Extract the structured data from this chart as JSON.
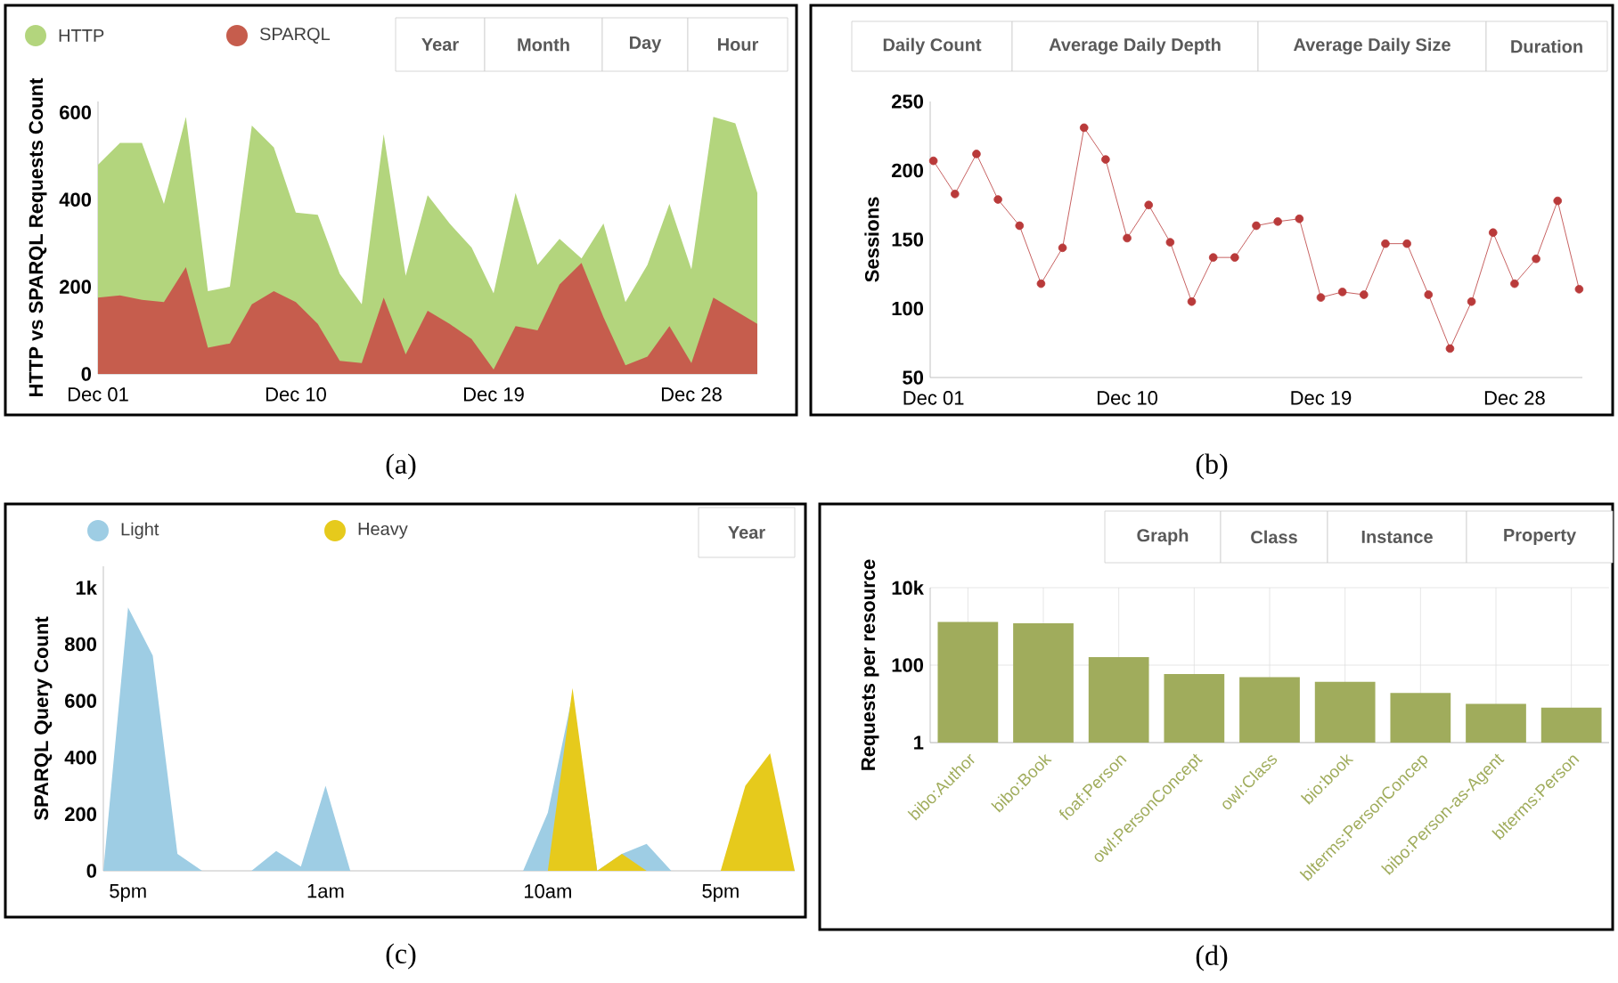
{
  "chart_data": [
    {
      "type": "area",
      "subtitle": "(a)",
      "ylabel": "HTTP vs SPARQL Requests Count",
      "categories": [
        "Dec 01",
        null,
        null,
        null,
        null,
        null,
        null,
        null,
        null,
        "Dec 10",
        null,
        null,
        null,
        null,
        null,
        null,
        null,
        null,
        "Dec 19",
        null,
        null,
        null,
        null,
        null,
        null,
        null,
        null,
        "Dec 28",
        null,
        null,
        null
      ],
      "series": [
        {
          "name": "HTTP",
          "color": "#b3d57d",
          "values": [
            480,
            530,
            530,
            390,
            590,
            190,
            200,
            570,
            520,
            370,
            365,
            230,
            160,
            550,
            225,
            410,
            345,
            290,
            185,
            415,
            250,
            310,
            265,
            345,
            165,
            250,
            390,
            240,
            590,
            575,
            415
          ]
        },
        {
          "name": "SPARQL",
          "color": "#c65d4d",
          "values": [
            175,
            180,
            170,
            165,
            245,
            60,
            70,
            160,
            190,
            165,
            115,
            30,
            25,
            175,
            45,
            145,
            115,
            80,
            10,
            110,
            100,
            205,
            255,
            130,
            20,
            40,
            110,
            25,
            175,
            145,
            115
          ]
        }
      ],
      "ylim": [
        0,
        625
      ],
      "yticks": [
        0,
        200,
        400,
        600
      ],
      "legend": "top left",
      "annotations": [
        "Year",
        "Month",
        "Day",
        "Hour"
      ]
    },
    {
      "type": "line",
      "subtitle": "(b)",
      "ylabel": "Sessions",
      "marker": "circle",
      "categories": [
        "Dec 01",
        null,
        null,
        null,
        null,
        null,
        null,
        null,
        null,
        "Dec 10",
        null,
        null,
        null,
        null,
        null,
        null,
        null,
        null,
        "Dec 19",
        null,
        null,
        null,
        null,
        null,
        null,
        null,
        null,
        "Dec 28",
        null,
        null,
        null
      ],
      "series": [
        {
          "color": "#b93a3a",
          "values": [
            207,
            183,
            212,
            179,
            160,
            118,
            144,
            231,
            208,
            151,
            175,
            148,
            105,
            137,
            137,
            160,
            163,
            165,
            108,
            112,
            110,
            147,
            147,
            110,
            71,
            105,
            155,
            118,
            136,
            178,
            114
          ]
        }
      ],
      "ylim": [
        50,
        250
      ],
      "yticks": [
        50,
        100,
        150,
        200,
        250
      ],
      "annotations": [
        "Daily Count",
        "Average Daily Depth",
        "Average Daily Size",
        "Duration"
      ]
    },
    {
      "type": "area",
      "subtitle": "(c)",
      "ylabel": "SPARQL Query Count",
      "categories": [
        null,
        "5pm",
        null,
        null,
        null,
        null,
        null,
        null,
        null,
        "1am",
        null,
        null,
        null,
        null,
        null,
        null,
        null,
        null,
        "10am",
        null,
        null,
        null,
        null,
        null,
        null,
        "5pm",
        null,
        null,
        null
      ],
      "series": [
        {
          "name": "Light",
          "color": "#9ecde4",
          "values": [
            0,
            930,
            760,
            60,
            0,
            0,
            0,
            70,
            15,
            300,
            0,
            0,
            0,
            0,
            0,
            0,
            0,
            0,
            205,
            620,
            0,
            60,
            95,
            0,
            0,
            0,
            null,
            null,
            0
          ]
        },
        {
          "name": "Heavy",
          "color": "#e6ca1c",
          "values": [
            0,
            0,
            0,
            0,
            0,
            0,
            0,
            0,
            0,
            0,
            0,
            0,
            0,
            0,
            0,
            0,
            0,
            0,
            0,
            645,
            0,
            60,
            0,
            0,
            0,
            0,
            300,
            415,
            0
          ]
        }
      ],
      "ylim": [
        0,
        1075
      ],
      "yticks": [
        0,
        200,
        400,
        600,
        800,
        {
          "value": 1000,
          "label": "1k"
        }
      ],
      "legend": "top left",
      "annotations": [
        "Year"
      ]
    },
    {
      "type": "bar",
      "subtitle": "(d)",
      "ylabel": "Requests per resource",
      "log": true,
      "grid": true,
      "categories": [
        "bibo:Author",
        "bibo:Book",
        "foaf:Person",
        "owl:PersonConcept",
        "owl:Class",
        "bio:book",
        "blterms:PersonConcep",
        "bibo:Person-as-Agent",
        "blterms:Person"
      ],
      "values": [
        1300,
        1200,
        160,
        59,
        49,
        37,
        19,
        10,
        8
      ],
      "color": "#a0ac5c",
      "ylim": [
        1,
        10000
      ],
      "yticks": [
        1,
        100,
        {
          "value": 10000,
          "label": "10k"
        }
      ],
      "annotations": [
        "Graph",
        "Class",
        "Instance",
        "Property"
      ]
    }
  ]
}
